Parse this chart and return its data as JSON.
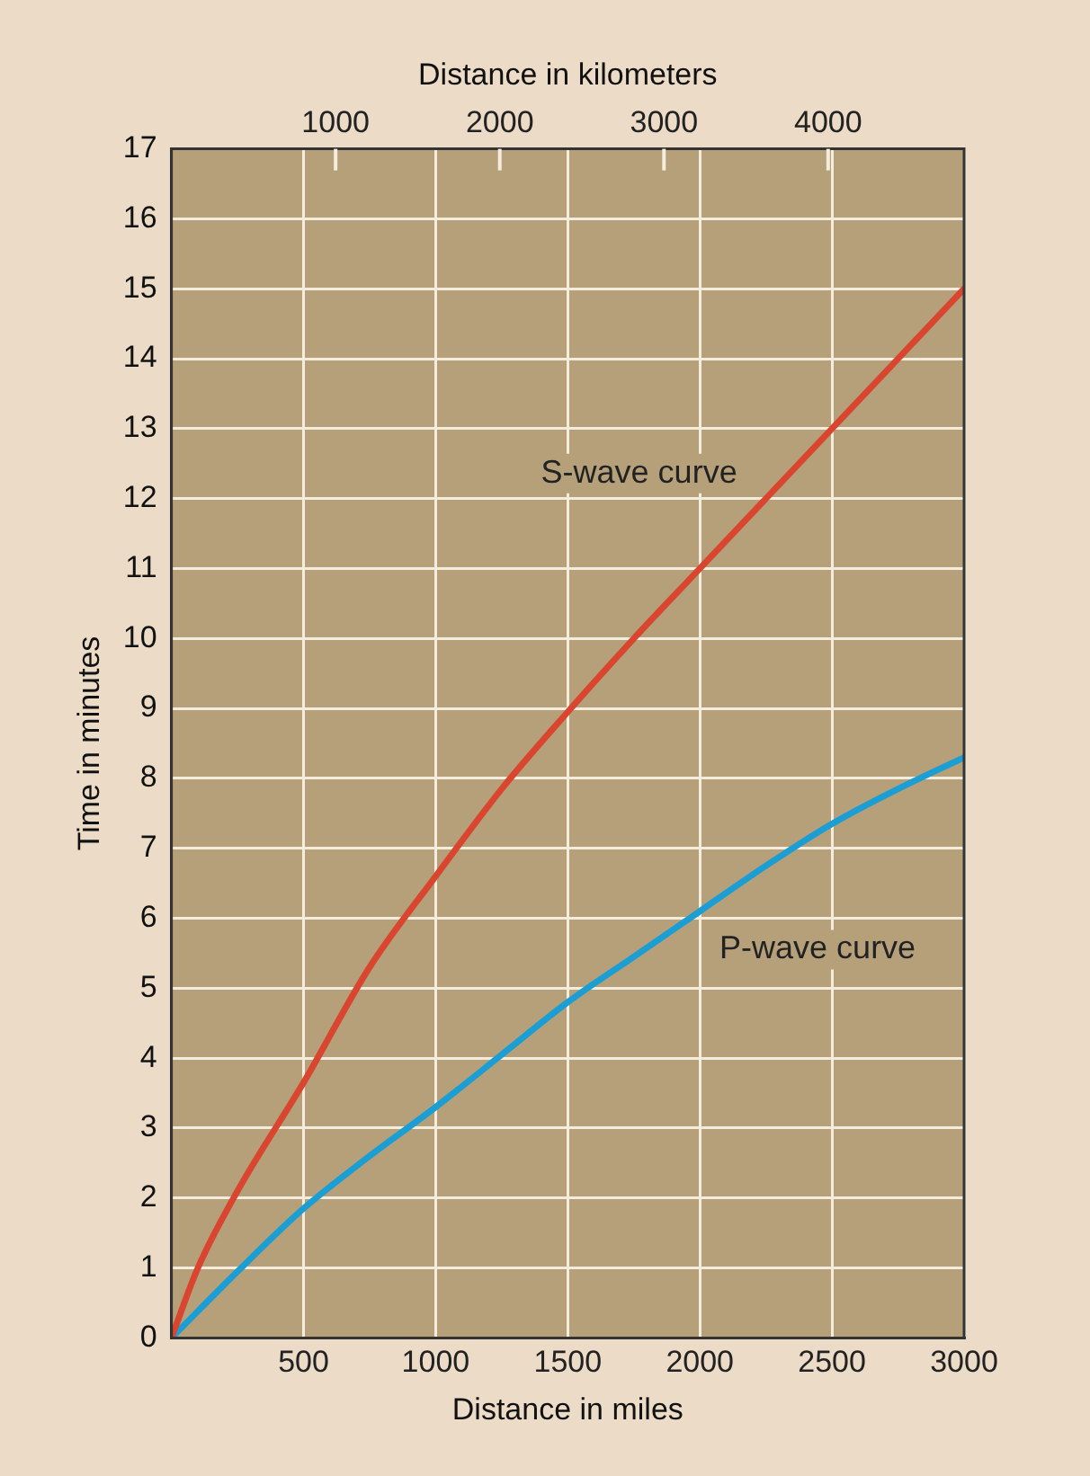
{
  "chart_data": {
    "type": "line",
    "xlabel": "Distance in miles",
    "ylabel": "Time in minutes",
    "x2label": "Distance in kilometers",
    "xlim": [
      0,
      3000
    ],
    "xticks": [
      500,
      1000,
      1500,
      2000,
      2500,
      3000
    ],
    "x2lim": [
      0,
      4828
    ],
    "x2ticks": [
      1000,
      2000,
      3000,
      4000
    ],
    "ylim": [
      0,
      17
    ],
    "yticks": [
      0,
      1,
      2,
      3,
      4,
      5,
      6,
      7,
      8,
      9,
      10,
      11,
      12,
      13,
      14,
      15,
      16,
      17
    ],
    "grid": true,
    "legend": false,
    "marker": "none",
    "line_style": "solid",
    "series": [
      {
        "name": "S-wave curve",
        "color": "#d9452e",
        "x": [
          0,
          100,
          250,
          500,
          750,
          1000,
          1250,
          1500,
          1750,
          2000,
          2250,
          2500,
          2750,
          3000
        ],
        "values": [
          0,
          1.0,
          2.1,
          3.65,
          5.3,
          6.6,
          7.85,
          8.95,
          10.0,
          11.0,
          12.0,
          13.0,
          14.0,
          15.0
        ]
      },
      {
        "name": "P-wave curve",
        "color": "#1a9ed4",
        "x": [
          0,
          250,
          500,
          750,
          1000,
          1250,
          1500,
          1750,
          2000,
          2250,
          2500,
          2750,
          3000
        ],
        "values": [
          0,
          0.95,
          1.85,
          2.6,
          3.3,
          4.05,
          4.8,
          5.45,
          6.1,
          6.75,
          7.35,
          7.85,
          8.3
        ]
      }
    ]
  }
}
